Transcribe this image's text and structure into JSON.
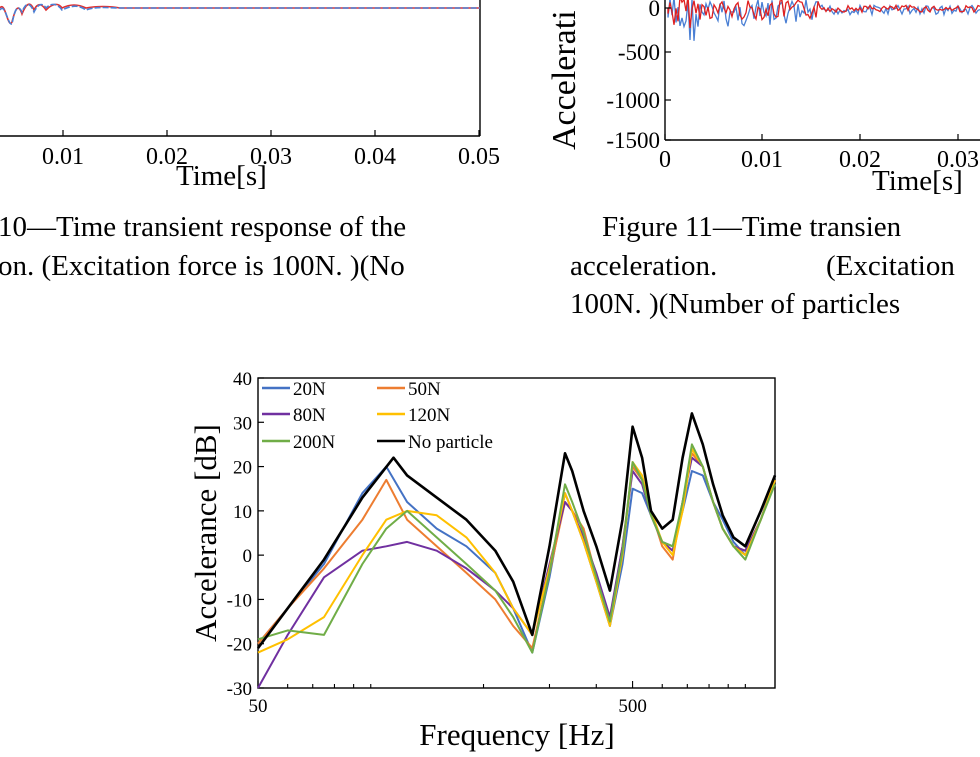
{
  "fig10": {
    "xlabel": "Time[s]",
    "xticks": [
      "0.01",
      "0.02",
      "0.03",
      "0.04",
      "0.05"
    ],
    "caption_line1": "10—Time transient response of the",
    "caption_line2": "on. (Excitation force is 100N. )(No"
  },
  "fig11": {
    "ylabel": "Accelerati",
    "yticks": [
      "0",
      "-500",
      "-1000",
      "-1500"
    ],
    "xticks": [
      "0",
      "0.01",
      "0.02",
      "0.03"
    ],
    "xlabel": "Time[s]",
    "caption_line1": "Figure  11—Time transien",
    "caption_line2a": "acceleration.",
    "caption_line2b": "(Excitation",
    "caption_line3": "100N. )(Number of particles"
  },
  "chart_data": {
    "type": "line",
    "title": "",
    "xlabel": "Frequency [Hz]",
    "ylabel": "Accelerance [dB]",
    "xscale": "log",
    "xlim": [
      50,
      1200
    ],
    "ylim": [
      -30,
      40
    ],
    "yticks": [
      "40",
      "30",
      "20",
      "10",
      "0",
      "-10",
      "-20",
      "-30"
    ],
    "xticks": [
      "50",
      "500"
    ],
    "legend_position": "top-left",
    "series": [
      {
        "name": "20N",
        "color": "#4472C4",
        "x": [
          50,
          60,
          75,
          95,
          110,
          125,
          150,
          180,
          215,
          240,
          270,
          300,
          330,
          345,
          370,
          400,
          435,
          470,
          500,
          530,
          560,
          600,
          640,
          680,
          720,
          770,
          820,
          870,
          930,
          1000,
          1100,
          1200
        ],
        "y": [
          -20,
          -12,
          -2,
          14,
          20,
          12,
          6,
          2,
          -4,
          -12,
          -22,
          -5,
          14,
          10,
          3,
          -6,
          -16,
          -2,
          15,
          14,
          9,
          3,
          2,
          10,
          19,
          18,
          12,
          8,
          3,
          0,
          8,
          18
        ]
      },
      {
        "name": "50N",
        "color": "#ED7D31",
        "x": [
          50,
          60,
          75,
          95,
          110,
          125,
          150,
          180,
          215,
          240,
          270,
          300,
          330,
          345,
          370,
          400,
          435,
          470,
          500,
          530,
          560,
          600,
          640,
          680,
          720,
          770,
          820,
          870,
          930,
          1000,
          1100,
          1200
        ],
        "y": [
          -20,
          -12,
          -3,
          8,
          17,
          8,
          2,
          -4,
          -10,
          -16,
          -21,
          -4,
          12,
          10,
          6,
          -5,
          -15,
          2,
          20,
          17,
          10,
          2,
          -1,
          12,
          23,
          20,
          12,
          6,
          2,
          1,
          8,
          17
        ]
      },
      {
        "name": "80N",
        "color": "#7030A0",
        "x": [
          50,
          60,
          75,
          95,
          110,
          125,
          150,
          180,
          215,
          240,
          270,
          300,
          330,
          345,
          370,
          400,
          435,
          470,
          500,
          530,
          560,
          600,
          640,
          680,
          720,
          770,
          820,
          870,
          930,
          1000,
          1100,
          1200
        ],
        "y": [
          -30,
          -18,
          -5,
          1,
          2,
          3,
          1,
          -3,
          -8,
          -12,
          -18,
          -2,
          12,
          10,
          4,
          -4,
          -14,
          2,
          19,
          16,
          9,
          3,
          1,
          12,
          22,
          20,
          12,
          6,
          2,
          1,
          8,
          17
        ]
      },
      {
        "name": "120N",
        "color": "#FFC000",
        "x": [
          50,
          60,
          75,
          95,
          110,
          125,
          150,
          180,
          215,
          240,
          270,
          300,
          330,
          345,
          370,
          400,
          435,
          470,
          500,
          530,
          560,
          600,
          640,
          680,
          720,
          770,
          820,
          870,
          930,
          1000,
          1100,
          1200
        ],
        "y": [
          -22,
          -19,
          -14,
          0,
          8,
          10,
          9,
          4,
          -4,
          -12,
          -18,
          -3,
          14,
          10,
          3,
          -6,
          -16,
          0,
          21,
          18,
          10,
          3,
          0,
          10,
          24,
          20,
          12,
          6,
          2,
          0,
          8,
          17
        ]
      },
      {
        "name": "200N",
        "color": "#70AD47",
        "x": [
          50,
          60,
          75,
          95,
          110,
          125,
          150,
          180,
          215,
          240,
          270,
          300,
          330,
          345,
          370,
          400,
          435,
          470,
          500,
          530,
          560,
          600,
          640,
          680,
          720,
          770,
          820,
          870,
          930,
          1000,
          1100,
          1200
        ],
        "y": [
          -19,
          -17,
          -18,
          -2,
          6,
          10,
          4,
          -2,
          -8,
          -14,
          -22,
          -4,
          16,
          12,
          5,
          -5,
          -15,
          1,
          21,
          17,
          9,
          3,
          2,
          12,
          25,
          20,
          12,
          6,
          2,
          -1,
          8,
          16
        ]
      },
      {
        "name": "No particle",
        "color": "#000000",
        "x": [
          50,
          60,
          75,
          95,
          115,
          125,
          150,
          180,
          215,
          240,
          270,
          300,
          330,
          345,
          370,
          400,
          435,
          470,
          500,
          530,
          560,
          600,
          640,
          680,
          720,
          770,
          820,
          870,
          930,
          1000,
          1100,
          1200
        ],
        "y": [
          -21,
          -12,
          -1,
          13,
          22,
          18,
          13,
          8,
          1,
          -6,
          -18,
          2,
          23,
          19,
          10,
          2,
          -8,
          8,
          29,
          22,
          10,
          6,
          8,
          22,
          32,
          25,
          16,
          9,
          4,
          2,
          10,
          18
        ]
      }
    ]
  }
}
